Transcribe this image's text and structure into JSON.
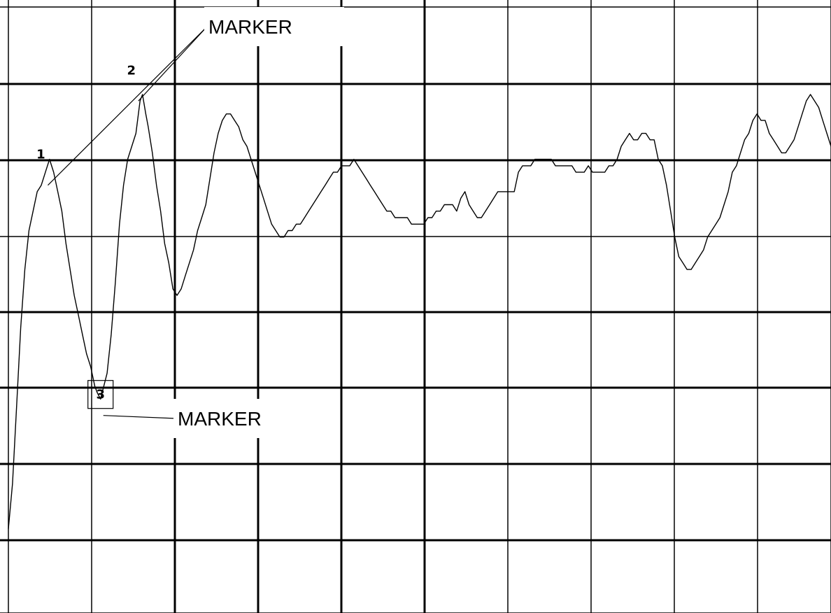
{
  "chart_data": {
    "type": "line",
    "title": "",
    "xlabel": "",
    "ylabel": "",
    "xlim": [
      0,
      10
    ],
    "ylim": [
      0,
      8
    ],
    "grid": true,
    "series": [
      {
        "points": [
          [
            0.0,
            1.3
          ],
          [
            0.05,
            2.0
          ],
          [
            0.1,
            3.2
          ],
          [
            0.15,
            4.4
          ],
          [
            0.2,
            5.3
          ],
          [
            0.25,
            5.9
          ],
          [
            0.3,
            6.2
          ],
          [
            0.35,
            6.5
          ],
          [
            0.4,
            6.6
          ],
          [
            0.45,
            6.8
          ],
          [
            0.5,
            7.0
          ],
          [
            0.55,
            6.8
          ],
          [
            0.6,
            6.5
          ],
          [
            0.65,
            6.2
          ],
          [
            0.7,
            5.7
          ],
          [
            0.75,
            5.3
          ],
          [
            0.8,
            4.9
          ],
          [
            0.85,
            4.6
          ],
          [
            0.9,
            4.3
          ],
          [
            0.95,
            4.0
          ],
          [
            1.0,
            3.8
          ],
          [
            1.05,
            3.5
          ],
          [
            1.08,
            3.4
          ],
          [
            1.12,
            3.3
          ],
          [
            1.16,
            3.5
          ],
          [
            1.2,
            3.7
          ],
          [
            1.25,
            4.3
          ],
          [
            1.3,
            5.1
          ],
          [
            1.35,
            6.0
          ],
          [
            1.4,
            6.6
          ],
          [
            1.45,
            7.0
          ],
          [
            1.5,
            7.2
          ],
          [
            1.55,
            7.4
          ],
          [
            1.6,
            7.9
          ],
          [
            1.63,
            8.0
          ],
          [
            1.67,
            7.7
          ],
          [
            1.7,
            7.5
          ],
          [
            1.75,
            7.1
          ],
          [
            1.8,
            6.6
          ],
          [
            1.85,
            6.2
          ],
          [
            1.9,
            5.7
          ],
          [
            1.95,
            5.4
          ],
          [
            2.0,
            5.0
          ],
          [
            2.05,
            4.9
          ],
          [
            2.1,
            5.0
          ],
          [
            2.15,
            5.2
          ],
          [
            2.2,
            5.4
          ],
          [
            2.25,
            5.6
          ],
          [
            2.3,
            5.9
          ],
          [
            2.35,
            6.1
          ],
          [
            2.4,
            6.3
          ],
          [
            2.45,
            6.7
          ],
          [
            2.5,
            7.1
          ],
          [
            2.55,
            7.4
          ],
          [
            2.6,
            7.6
          ],
          [
            2.65,
            7.7
          ],
          [
            2.7,
            7.7
          ],
          [
            2.75,
            7.6
          ],
          [
            2.8,
            7.5
          ],
          [
            2.85,
            7.3
          ],
          [
            2.9,
            7.2
          ],
          [
            2.95,
            7.0
          ],
          [
            3.0,
            6.8
          ],
          [
            3.05,
            6.6
          ],
          [
            3.1,
            6.4
          ],
          [
            3.15,
            6.2
          ],
          [
            3.2,
            6.0
          ],
          [
            3.25,
            5.9
          ],
          [
            3.3,
            5.8
          ],
          [
            3.35,
            5.8
          ],
          [
            3.4,
            5.9
          ],
          [
            3.45,
            5.9
          ],
          [
            3.5,
            6.0
          ],
          [
            3.55,
            6.0
          ],
          [
            3.6,
            6.1
          ],
          [
            3.65,
            6.2
          ],
          [
            3.7,
            6.3
          ],
          [
            3.75,
            6.4
          ],
          [
            3.8,
            6.5
          ],
          [
            3.85,
            6.6
          ],
          [
            3.9,
            6.7
          ],
          [
            3.95,
            6.8
          ],
          [
            4.0,
            6.8
          ],
          [
            4.05,
            6.9
          ],
          [
            4.1,
            6.9
          ],
          [
            4.15,
            6.9
          ],
          [
            4.2,
            7.0
          ],
          [
            4.25,
            6.9
          ],
          [
            4.3,
            6.8
          ],
          [
            4.35,
            6.7
          ],
          [
            4.4,
            6.6
          ],
          [
            4.45,
            6.5
          ],
          [
            4.5,
            6.4
          ],
          [
            4.55,
            6.3
          ],
          [
            4.6,
            6.2
          ],
          [
            4.65,
            6.2
          ],
          [
            4.7,
            6.1
          ],
          [
            4.75,
            6.1
          ],
          [
            4.8,
            6.1
          ],
          [
            4.85,
            6.1
          ],
          [
            4.9,
            6.0
          ],
          [
            4.95,
            6.0
          ],
          [
            5.0,
            6.0
          ],
          [
            5.05,
            6.0
          ],
          [
            5.1,
            6.1
          ],
          [
            5.15,
            6.1
          ],
          [
            5.2,
            6.2
          ],
          [
            5.25,
            6.2
          ],
          [
            5.3,
            6.3
          ],
          [
            5.35,
            6.3
          ],
          [
            5.4,
            6.3
          ],
          [
            5.45,
            6.2
          ],
          [
            5.5,
            6.4
          ],
          [
            5.55,
            6.5
          ],
          [
            5.6,
            6.3
          ],
          [
            5.65,
            6.2
          ],
          [
            5.7,
            6.1
          ],
          [
            5.75,
            6.1
          ],
          [
            5.8,
            6.2
          ],
          [
            5.85,
            6.3
          ],
          [
            5.9,
            6.4
          ],
          [
            5.95,
            6.5
          ],
          [
            6.0,
            6.5
          ],
          [
            6.05,
            6.5
          ],
          [
            6.1,
            6.5
          ],
          [
            6.15,
            6.5
          ],
          [
            6.2,
            6.8
          ],
          [
            6.25,
            6.9
          ],
          [
            6.3,
            6.9
          ],
          [
            6.35,
            6.9
          ],
          [
            6.4,
            7.0
          ],
          [
            6.45,
            7.0
          ],
          [
            6.5,
            7.0
          ],
          [
            6.55,
            7.0
          ],
          [
            6.6,
            7.0
          ],
          [
            6.65,
            6.9
          ],
          [
            6.7,
            6.9
          ],
          [
            6.75,
            6.9
          ],
          [
            6.8,
            6.9
          ],
          [
            6.85,
            6.9
          ],
          [
            6.9,
            6.8
          ],
          [
            6.95,
            6.8
          ],
          [
            7.0,
            6.8
          ],
          [
            7.05,
            6.9
          ],
          [
            7.1,
            6.8
          ],
          [
            7.15,
            6.8
          ],
          [
            7.2,
            6.8
          ],
          [
            7.25,
            6.8
          ],
          [
            7.3,
            6.9
          ],
          [
            7.35,
            6.9
          ],
          [
            7.4,
            7.0
          ],
          [
            7.45,
            7.2
          ],
          [
            7.5,
            7.3
          ],
          [
            7.55,
            7.4
          ],
          [
            7.6,
            7.3
          ],
          [
            7.65,
            7.3
          ],
          [
            7.7,
            7.4
          ],
          [
            7.75,
            7.4
          ],
          [
            7.8,
            7.3
          ],
          [
            7.85,
            7.3
          ],
          [
            7.9,
            7.0
          ],
          [
            7.95,
            6.9
          ],
          [
            8.0,
            6.6
          ],
          [
            8.05,
            6.2
          ],
          [
            8.1,
            5.8
          ],
          [
            8.15,
            5.5
          ],
          [
            8.2,
            5.4
          ],
          [
            8.25,
            5.3
          ],
          [
            8.3,
            5.3
          ],
          [
            8.35,
            5.4
          ],
          [
            8.4,
            5.5
          ],
          [
            8.45,
            5.6
          ],
          [
            8.5,
            5.8
          ],
          [
            8.55,
            5.9
          ],
          [
            8.6,
            6.0
          ],
          [
            8.65,
            6.1
          ],
          [
            8.7,
            6.3
          ],
          [
            8.75,
            6.5
          ],
          [
            8.8,
            6.8
          ],
          [
            8.85,
            6.9
          ],
          [
            8.9,
            7.1
          ],
          [
            8.95,
            7.3
          ],
          [
            9.0,
            7.4
          ],
          [
            9.05,
            7.6
          ],
          [
            9.1,
            7.7
          ],
          [
            9.15,
            7.6
          ],
          [
            9.2,
            7.6
          ],
          [
            9.25,
            7.4
          ],
          [
            9.3,
            7.3
          ],
          [
            9.35,
            7.2
          ],
          [
            9.4,
            7.1
          ],
          [
            9.45,
            7.1
          ],
          [
            9.5,
            7.2
          ],
          [
            9.55,
            7.3
          ],
          [
            9.6,
            7.5
          ],
          [
            9.65,
            7.7
          ],
          [
            9.7,
            7.9
          ],
          [
            9.75,
            8.0
          ],
          [
            9.8,
            7.9
          ],
          [
            9.85,
            7.8
          ],
          [
            9.9,
            7.6
          ],
          [
            9.95,
            7.4
          ],
          [
            10.0,
            7.2
          ]
        ]
      }
    ],
    "peak_labels": [
      {
        "text": "1",
        "x": 0.48,
        "y": 6.6
      },
      {
        "text": "2",
        "x": 1.58,
        "y": 7.9
      },
      {
        "text": "3",
        "x": 1.12,
        "y": 3.35
      }
    ],
    "annotations": [
      {
        "text": "MARKER",
        "targets": [
          "1",
          "2"
        ]
      },
      {
        "text": "MARKER",
        "targets": [
          "3"
        ]
      }
    ]
  }
}
